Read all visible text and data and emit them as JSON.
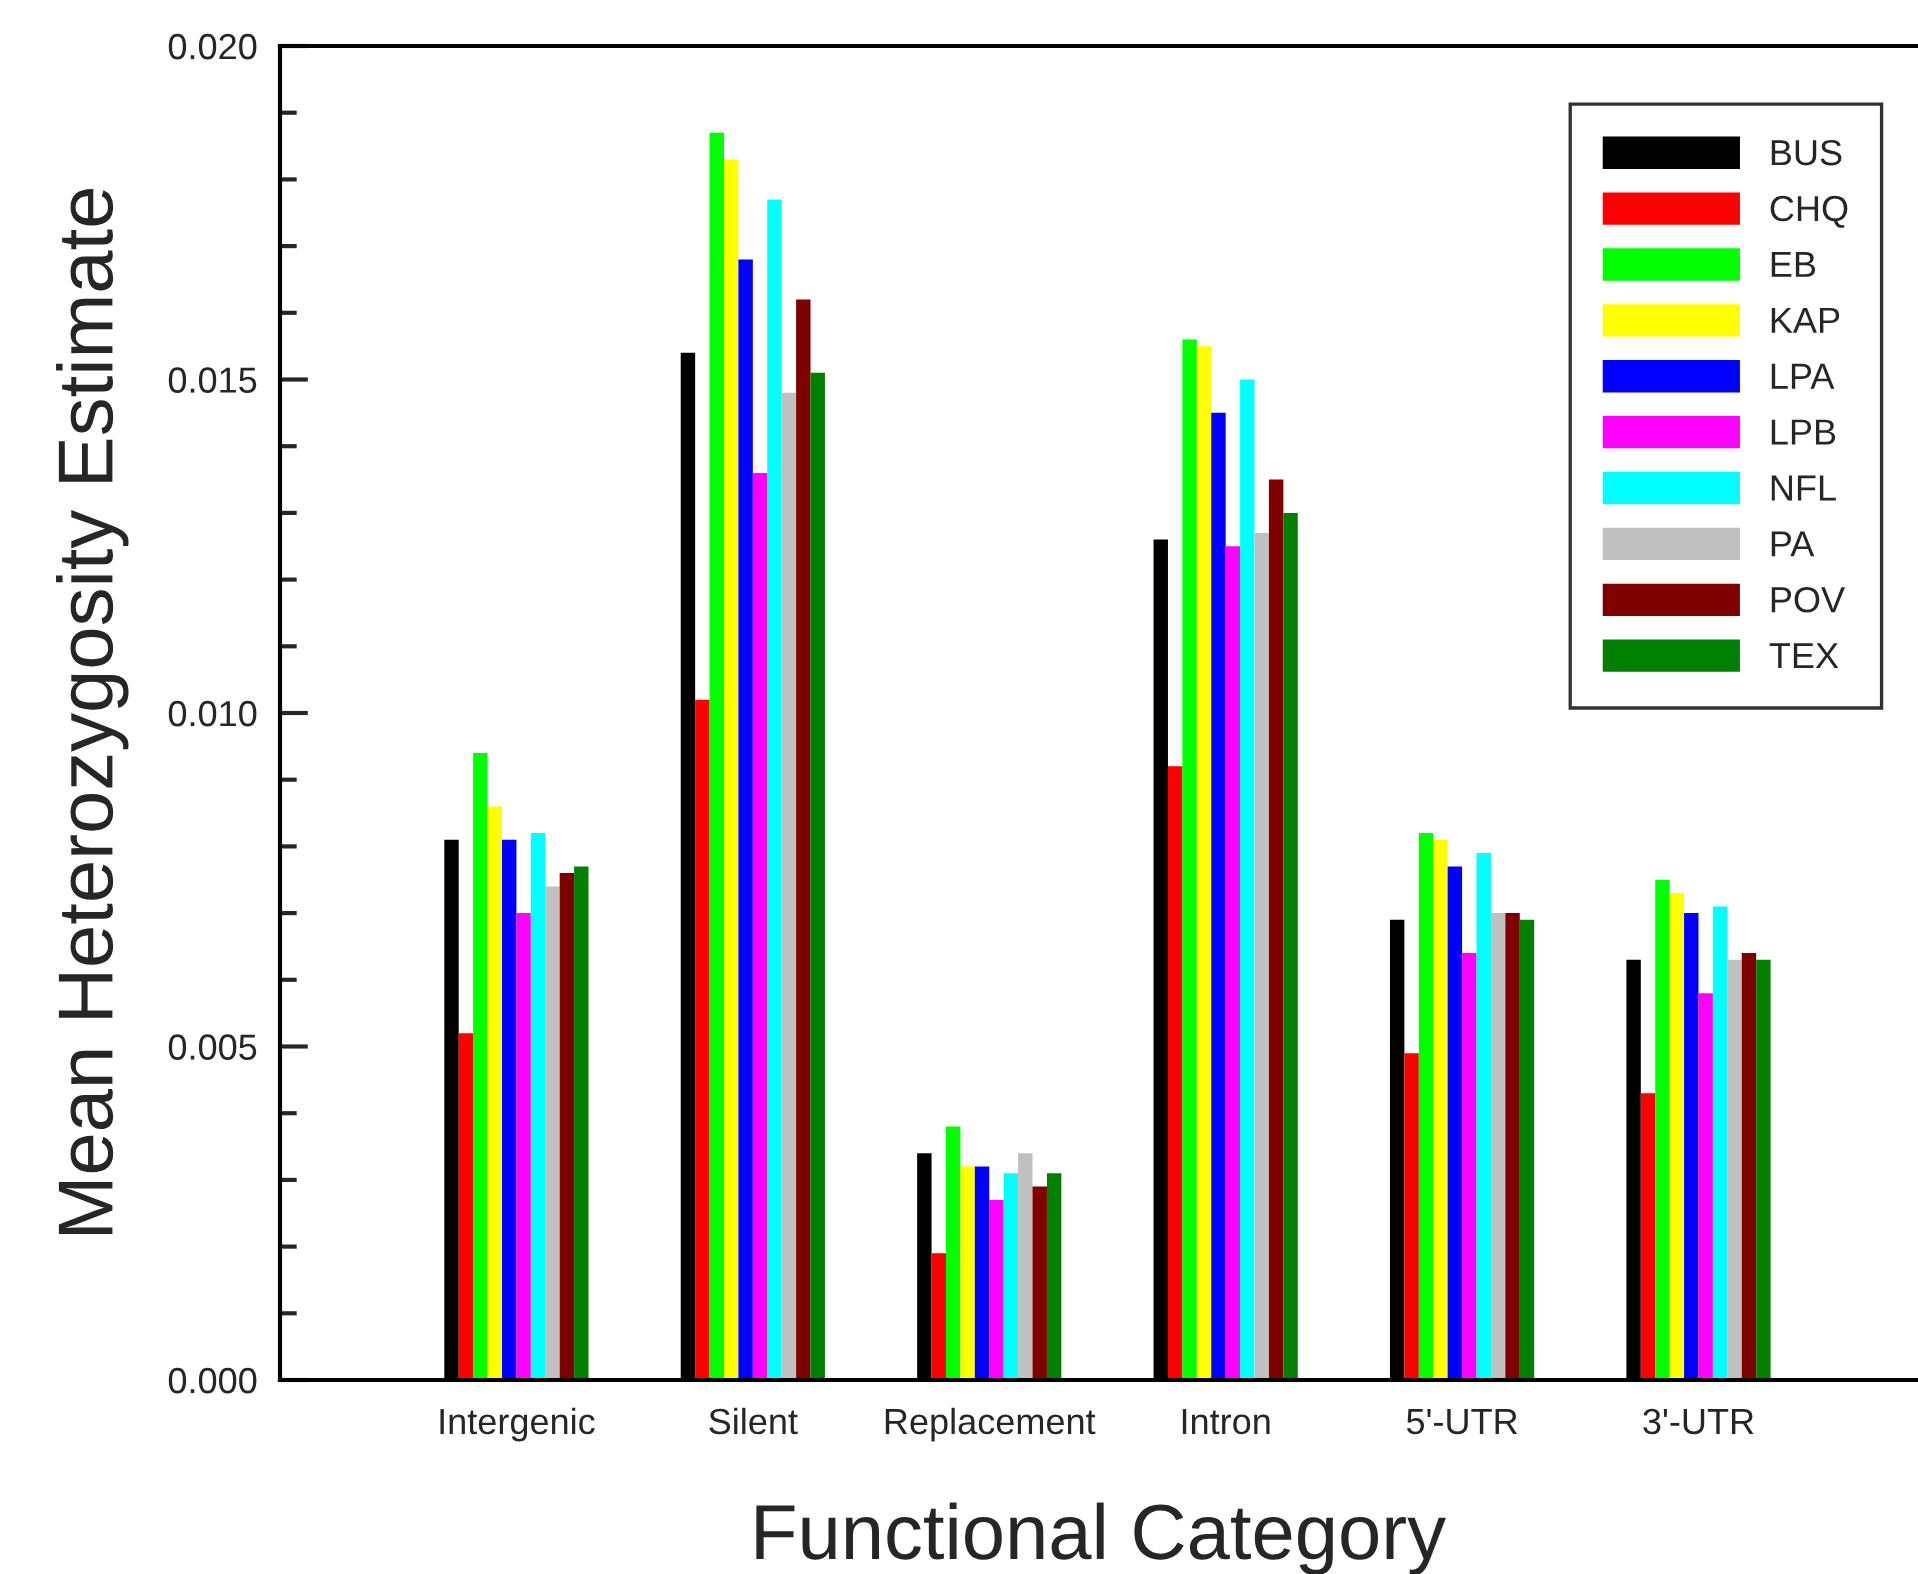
{
  "chart_data": {
    "type": "bar",
    "xlabel": "Functional Category",
    "ylabel": "Mean Heterozygosity Estimate",
    "categories": [
      "Intergenic",
      "Silent",
      "Replacement",
      "Intron",
      "5'-UTR",
      "3'-UTR"
    ],
    "series": [
      {
        "name": "BUS",
        "color": "#000000",
        "values": [
          0.0081,
          0.0154,
          0.0034,
          0.0126,
          0.0069,
          0.0063
        ]
      },
      {
        "name": "CHQ",
        "color": "#ff0000",
        "values": [
          0.0052,
          0.0102,
          0.0019,
          0.0092,
          0.0049,
          0.0043
        ]
      },
      {
        "name": "EB",
        "color": "#00ff00",
        "values": [
          0.0094,
          0.0187,
          0.0038,
          0.0156,
          0.0082,
          0.0075
        ]
      },
      {
        "name": "KAP",
        "color": "#ffff00",
        "values": [
          0.0086,
          0.0183,
          0.0032,
          0.0155,
          0.0081,
          0.0073
        ]
      },
      {
        "name": "LPA",
        "color": "#0000ff",
        "values": [
          0.0081,
          0.0168,
          0.0032,
          0.0145,
          0.0077,
          0.007
        ]
      },
      {
        "name": "LPB",
        "color": "#ff00ff",
        "values": [
          0.007,
          0.0136,
          0.0027,
          0.0125,
          0.0064,
          0.0058
        ]
      },
      {
        "name": "NFL",
        "color": "#00ffff",
        "values": [
          0.0082,
          0.0177,
          0.0031,
          0.015,
          0.0079,
          0.0071
        ]
      },
      {
        "name": "PA",
        "color": "#c0c0c0",
        "values": [
          0.0074,
          0.0148,
          0.0034,
          0.0127,
          0.007,
          0.0063
        ]
      },
      {
        "name": "POV",
        "color": "#800000",
        "values": [
          0.0076,
          0.0162,
          0.0029,
          0.0135,
          0.007,
          0.0064
        ]
      },
      {
        "name": "TEX",
        "color": "#008000",
        "values": [
          0.0077,
          0.0151,
          0.0031,
          0.013,
          0.0069,
          0.0063
        ]
      }
    ],
    "ylim": [
      0,
      0.02
    ],
    "yticks": [
      {
        "value": 0,
        "label": "0.000"
      },
      {
        "value": 0.001,
        "label": null
      },
      {
        "value": 0.002,
        "label": null
      },
      {
        "value": 0.003,
        "label": null
      },
      {
        "value": 0.004,
        "label": null
      },
      {
        "value": 0.005,
        "label": "0.005"
      },
      {
        "value": 0.006,
        "label": null
      },
      {
        "value": 0.007,
        "label": null
      },
      {
        "value": 0.008,
        "label": null
      },
      {
        "value": 0.009,
        "label": null
      },
      {
        "value": 0.01,
        "label": "0.010"
      },
      {
        "value": 0.011,
        "label": null
      },
      {
        "value": 0.012,
        "label": null
      },
      {
        "value": 0.013,
        "label": null
      },
      {
        "value": 0.014,
        "label": null
      },
      {
        "value": 0.015,
        "label": "0.015"
      },
      {
        "value": 0.016,
        "label": null
      },
      {
        "value": 0.017,
        "label": null
      },
      {
        "value": 0.018,
        "label": null
      },
      {
        "value": 0.019,
        "label": null
      },
      {
        "value": 0.02,
        "label": "0.020"
      }
    ],
    "grid": false,
    "legend": "top right"
  }
}
